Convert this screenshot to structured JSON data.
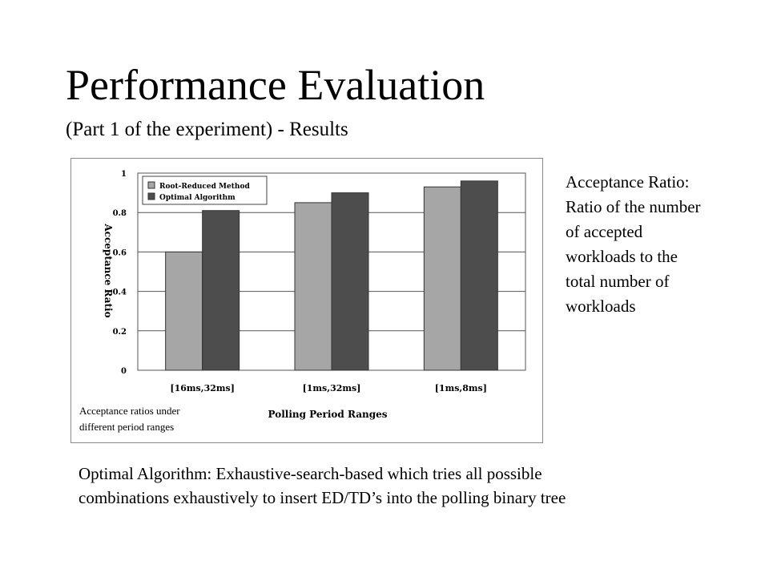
{
  "slide": {
    "title": "Performance Evaluation",
    "subtitle": "(Part 1 of the experiment) - Results"
  },
  "chart_data": {
    "type": "bar",
    "categories": [
      "[16ms,32ms]",
      "[1ms,32ms]",
      "[1ms,8ms]"
    ],
    "series": [
      {
        "name": "Root-Reduced Method",
        "values": [
          0.6,
          0.85,
          0.93
        ],
        "color": "#a6a6a6"
      },
      {
        "name": "Optimal Algorithm",
        "values": [
          0.81,
          0.9,
          0.96
        ],
        "color": "#4d4d4d"
      }
    ],
    "title": "",
    "xlabel": "Polling Period Ranges",
    "ylabel": "Acceptance Ratio",
    "ylim": [
      0,
      1
    ],
    "yticks": [
      "0",
      "0.2",
      "0.4",
      "0.6",
      "0.8",
      "1"
    ],
    "grid": true,
    "legend": "top-left"
  },
  "caption": {
    "line1": "Acceptance ratios under",
    "line2": "different period ranges"
  },
  "side_note": {
    "lines": [
      "Acceptance Ratio:",
      "Ratio of the number",
      "of accepted",
      "workloads to the",
      "total number of",
      "workloads"
    ]
  },
  "bottom_note": {
    "line1": "Optimal Algorithm: Exhaustive-search-based which tries all possible",
    "line2": "combinations exhaustively to insert ED/TD’s into the polling binary tree"
  }
}
